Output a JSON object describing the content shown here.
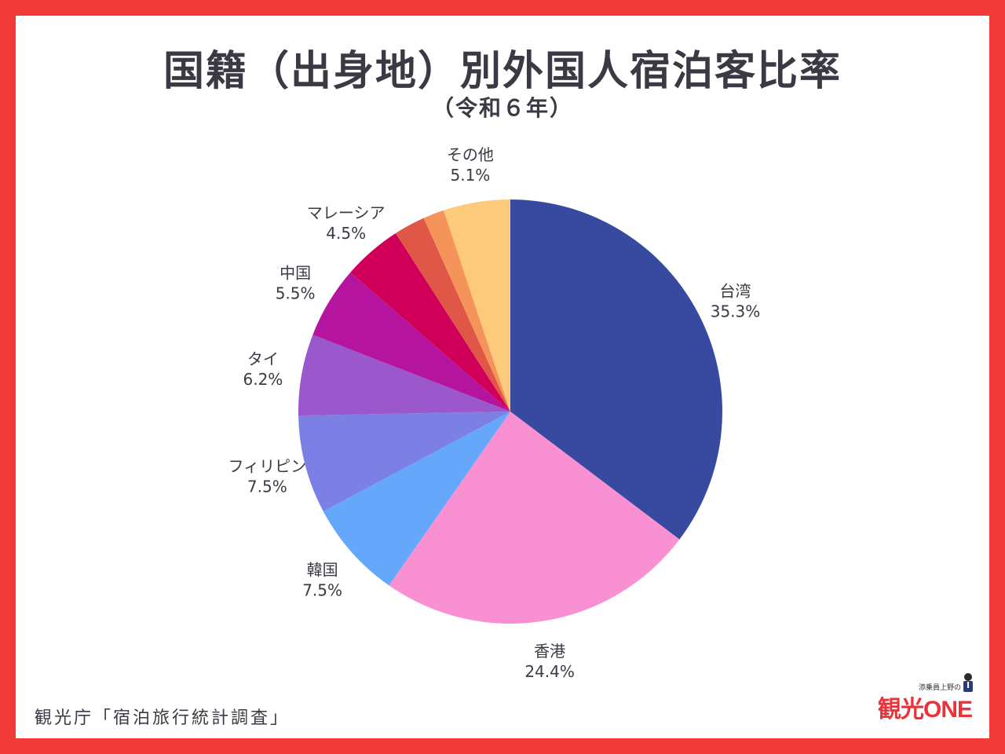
{
  "title": "国籍（出身地）別外国人宿泊客比率",
  "subtitle": "（令和６年）",
  "source": "観光庁「宿泊旅行統計調査」",
  "logo": {
    "tagline": "添乗員上野の",
    "main": "観光ONE"
  },
  "colors": {
    "frame": "#f23a3a",
    "text": "#3a3a44"
  },
  "chart_data": {
    "type": "pie",
    "start_angle_deg": 0,
    "direction": "clockwise",
    "slices": [
      {
        "label": "台湾",
        "value": 35.3,
        "value_label": "35.3%",
        "color": "#374a9f"
      },
      {
        "label": "香港",
        "value": 24.4,
        "value_label": "24.4%",
        "color": "#f990d1"
      },
      {
        "label": "韓国",
        "value": 7.5,
        "value_label": "7.5%",
        "color": "#65a8fb"
      },
      {
        "label": "フィリピン",
        "value": 7.5,
        "value_label": "7.5%",
        "color": "#7c7fe3"
      },
      {
        "label": "タイ",
        "value": 6.2,
        "value_label": "6.2%",
        "color": "#9b57cc"
      },
      {
        "label": "中国",
        "value": 5.5,
        "value_label": "5.5%",
        "color": "#b5149f"
      },
      {
        "label": "マレーシア",
        "value": 4.5,
        "value_label": "4.5%",
        "color": "#d0005a"
      },
      {
        "label": "",
        "value": 2.4,
        "value_label": "",
        "color": "#e15747"
      },
      {
        "label": "",
        "value": 1.6,
        "value_label": "",
        "color": "#f4945a"
      },
      {
        "label": "その他",
        "value": 5.1,
        "value_label": "5.1%",
        "color": "#fdc97a"
      }
    ]
  }
}
